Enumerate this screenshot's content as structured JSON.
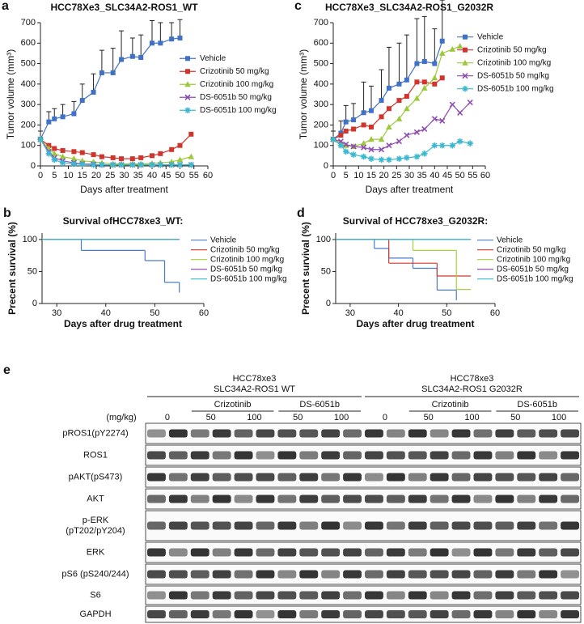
{
  "chart_data": [
    {
      "type": "line",
      "panel_label": "a",
      "title": "HCC78Xe3_SLC34A2-ROS1_WT",
      "x_label": "Days after treatment",
      "y_label": "Tumor volume (mm³)",
      "xlim": [
        0,
        60
      ],
      "xticks": [
        0,
        5,
        10,
        15,
        20,
        25,
        30,
        35,
        40,
        45,
        50,
        55,
        60
      ],
      "ylim": [
        0,
        700
      ],
      "yticks": [
        0,
        100,
        200,
        300,
        400,
        500,
        600,
        700
      ],
      "legend": "center right",
      "x": [
        0,
        3,
        5,
        8,
        12,
        15,
        19,
        22,
        26,
        29,
        33,
        36,
        40,
        43,
        47,
        50,
        54
      ],
      "series": [
        {
          "name": "Vehicle",
          "color": "#3f72c6",
          "marker": "square",
          "values": [
            130,
            215,
            230,
            240,
            255,
            320,
            360,
            455,
            455,
            520,
            535,
            530,
            600,
            600,
            620,
            625,
            null
          ],
          "errors": [
            40,
            50,
            50,
            60,
            60,
            80,
            90,
            110,
            120,
            140,
            90,
            110,
            110,
            100,
            80,
            90,
            null
          ]
        },
        {
          "name": "Crizotinib 50 mg/kg",
          "color": "#d0342c",
          "marker": "square",
          "values": [
            130,
            100,
            85,
            75,
            70,
            65,
            55,
            45,
            40,
            35,
            35,
            40,
            50,
            60,
            80,
            100,
            155
          ]
        },
        {
          "name": "Crizotinib 100 mg/kg",
          "color": "#9cc93a",
          "marker": "triangle",
          "values": [
            130,
            85,
            60,
            45,
            35,
            25,
            20,
            15,
            10,
            10,
            10,
            10,
            12,
            15,
            20,
            30,
            45
          ]
        },
        {
          "name": "DS-6051b 50 mg/kg",
          "color": "#8e4cb0",
          "marker": "x",
          "values": [
            130,
            70,
            40,
            25,
            15,
            10,
            8,
            5,
            5,
            5,
            5,
            5,
            5,
            5,
            5,
            5,
            5
          ]
        },
        {
          "name": "DS-6051b 100 mg/kg",
          "color": "#3cb8d0",
          "marker": "star",
          "values": [
            130,
            60,
            30,
            15,
            10,
            8,
            5,
            5,
            5,
            5,
            5,
            5,
            5,
            5,
            5,
            5,
            5
          ]
        }
      ]
    },
    {
      "type": "step",
      "panel_label": "b",
      "title": "Survival ofHCC78xe3_WT:",
      "x_label": "Days after drug treatment",
      "y_label": "Precent survival (%)",
      "xlim": [
        27,
        60
      ],
      "xticks": [
        30,
        40,
        50,
        60
      ],
      "ylim": [
        0,
        110
      ],
      "yticks": [
        0,
        50,
        100
      ],
      "legend": "upper right",
      "series": [
        {
          "name": "Vehicle",
          "color": "#4a7cc9",
          "x": [
            27,
            35,
            48,
            52,
            55
          ],
          "values": [
            100,
            83,
            67,
            33,
            17
          ]
        },
        {
          "name": "Crizotinib 50 mg/kg",
          "color": "#d0392b",
          "x": [
            27,
            55
          ],
          "values": [
            100,
            100
          ]
        },
        {
          "name": "Crizotinib 100 mg/kg",
          "color": "#a5d23a",
          "x": [
            27,
            55
          ],
          "values": [
            100,
            100
          ]
        },
        {
          "name": "DS-6051b 50 mg/kg",
          "color": "#8b3fb5",
          "x": [
            27,
            55
          ],
          "values": [
            100,
            100
          ]
        },
        {
          "name": "DS-6051b 100 mg/kg",
          "color": "#37b7cf",
          "x": [
            27,
            55
          ],
          "values": [
            100,
            100
          ]
        }
      ]
    },
    {
      "type": "line",
      "panel_label": "c",
      "title": "HCC78Xe3_SLC34A2-ROS1_G2032R",
      "x_label": "Days after treatment",
      "y_label": "Tumor volume (mm³)",
      "xlim": [
        0,
        60
      ],
      "xticks": [
        0,
        5,
        10,
        15,
        20,
        25,
        30,
        35,
        40,
        45,
        50,
        55,
        60
      ],
      "ylim": [
        0,
        700
      ],
      "yticks": [
        0,
        100,
        200,
        300,
        400,
        500,
        600,
        700
      ],
      "legend": "upper right",
      "x": [
        0,
        3,
        5,
        8,
        12,
        15,
        19,
        22,
        26,
        29,
        33,
        36,
        40,
        43,
        47,
        50,
        54
      ],
      "series": [
        {
          "name": "Vehicle",
          "color": "#3f72c6",
          "marker": "square",
          "values": [
            130,
            160,
            215,
            225,
            260,
            270,
            320,
            380,
            400,
            420,
            500,
            510,
            500,
            610,
            null,
            null,
            null
          ],
          "errors": [
            40,
            60,
            80,
            80,
            150,
            120,
            150,
            200,
            200,
            220,
            220,
            220,
            170,
            200,
            null,
            null,
            null
          ]
        },
        {
          "name": "Crizotinib 50 mg/kg",
          "color": "#d0342c",
          "marker": "square",
          "values": [
            130,
            150,
            170,
            180,
            200,
            190,
            240,
            280,
            320,
            340,
            410,
            410,
            400,
            430,
            null,
            null,
            null
          ]
        },
        {
          "name": "Crizotinib 100 mg/kg",
          "color": "#9cc93a",
          "marker": "triangle",
          "values": [
            130,
            110,
            100,
            95,
            110,
            130,
            130,
            190,
            230,
            280,
            330,
            380,
            430,
            550,
            570,
            585,
            null
          ]
        },
        {
          "name": "DS-6051b 50 mg/kg",
          "color": "#8e4cb0",
          "marker": "x",
          "values": [
            130,
            120,
            105,
            95,
            90,
            80,
            80,
            100,
            120,
            150,
            165,
            180,
            230,
            220,
            300,
            260,
            310
          ]
        },
        {
          "name": "DS-6051b 100 mg/kg",
          "color": "#3cb8d0",
          "marker": "star",
          "values": [
            130,
            100,
            70,
            55,
            45,
            35,
            30,
            30,
            35,
            40,
            45,
            60,
            100,
            100,
            100,
            120,
            110
          ]
        }
      ]
    },
    {
      "type": "step",
      "panel_label": "d",
      "title": "Survival of HCC78xe3_G2032R:",
      "x_label": "Days after drug treatment",
      "y_label": "Precent survival (%)",
      "xlim": [
        27,
        60
      ],
      "xticks": [
        30,
        40,
        50,
        60
      ],
      "ylim": [
        0,
        110
      ],
      "yticks": [
        0,
        50,
        100
      ],
      "legend": "upper right",
      "series": [
        {
          "name": "Vehicle",
          "color": "#4a7cc9",
          "x": [
            27,
            35,
            38,
            43,
            48,
            52
          ],
          "values": [
            100,
            86,
            71,
            55,
            21,
            5
          ]
        },
        {
          "name": "Crizotinib 50 mg/kg",
          "color": "#d0392b",
          "x": [
            27,
            38,
            48,
            55
          ],
          "values": [
            100,
            63,
            43,
            43
          ]
        },
        {
          "name": "Crizotinib 100 mg/kg",
          "color": "#a5d23a",
          "x": [
            27,
            43,
            52,
            55
          ],
          "values": [
            100,
            83,
            22,
            22
          ]
        },
        {
          "name": "DS-6051b 50 mg/kg",
          "color": "#8b3fb5",
          "x": [
            27,
            55
          ],
          "values": [
            100,
            100
          ]
        },
        {
          "name": "DS-6051b 100 mg/kg",
          "color": "#37b7cf",
          "x": [
            27,
            55
          ],
          "values": [
            100,
            100
          ]
        }
      ]
    }
  ],
  "blot": {
    "panel_label": "e",
    "unit": "(mg/kg)",
    "groups": [
      {
        "line1": "HCC78xe3",
        "line2": "SLC34A2-ROS1 WT",
        "drugs": [
          "Crizotinib",
          "DS-6051b"
        ],
        "doses": [
          "0",
          "50",
          "100",
          "50",
          "100"
        ]
      },
      {
        "line1": "HCC78xe3",
        "line2": "SLC34A2-ROS1 G2032R",
        "drugs": [
          "Crizotinib",
          "DS-6051b"
        ],
        "doses": [
          "0",
          "50",
          "100",
          "50",
          "100"
        ]
      }
    ],
    "rows": [
      [
        "pROS1(pY2274)"
      ],
      [
        "ROS1"
      ],
      [
        "pAKT(pS473)"
      ],
      [
        "AKT"
      ],
      [
        "p-ERK",
        "(pT202/pY204)"
      ],
      [
        "ERK"
      ],
      [
        "pS6 (pS240/244)"
      ],
      [
        "S6"
      ],
      [
        "GAPDH"
      ]
    ]
  }
}
